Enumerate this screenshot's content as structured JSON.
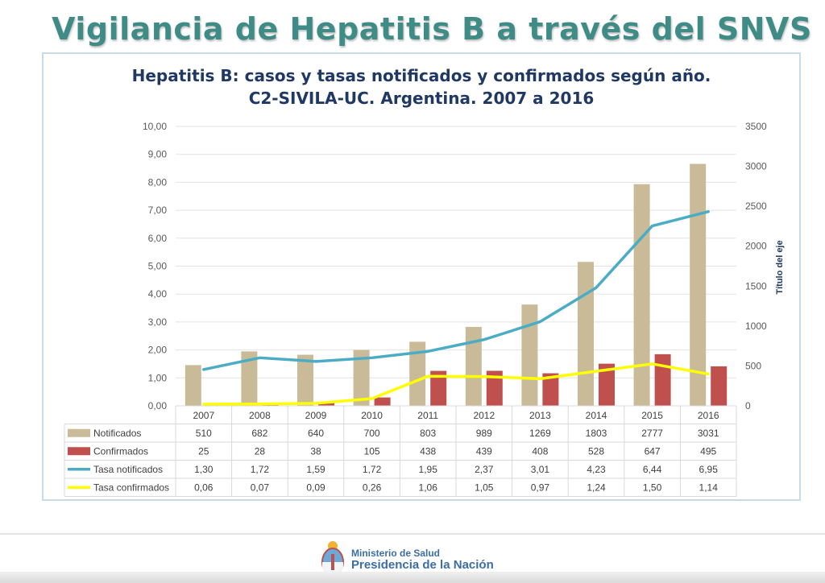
{
  "slide": {
    "title": "Vigilancia de Hepatitis B a través del SNVS"
  },
  "footer": {
    "ministry": "Ministerio de Salud",
    "presidency": "Presidencia de la Nación"
  },
  "chart_data": {
    "type": "bar",
    "title_line1": "Hepatitis B: casos y tasas notificados y confirmados según año.",
    "title_line2": "C2-SIVILA-UC. Argentina. 2007 a 2016",
    "categories": [
      "2007",
      "2008",
      "2009",
      "2010",
      "2011",
      "2012",
      "2013",
      "2014",
      "2015",
      "2016"
    ],
    "y_left": {
      "ylim": [
        0,
        10
      ],
      "ticks": [
        "0,00",
        "1,00",
        "2,00",
        "3,00",
        "4,00",
        "5,00",
        "6,00",
        "7,00",
        "8,00",
        "9,00",
        "10,00"
      ]
    },
    "y_right": {
      "ylim": [
        0,
        3500
      ],
      "ticks": [
        "0",
        "500",
        "1000",
        "1500",
        "2000",
        "2500",
        "3000",
        "3500"
      ],
      "label": "Título del eje"
    },
    "series": [
      {
        "name": "Notificados",
        "type": "bar",
        "axis": "right",
        "color": "#c9bb97",
        "values": [
          510,
          682,
          640,
          700,
          803,
          989,
          1269,
          1803,
          2777,
          3031
        ],
        "labels": [
          "510",
          "682",
          "640",
          "700",
          "803",
          "989",
          "1269",
          "1803",
          "2777",
          "3031"
        ]
      },
      {
        "name": "Confirmados",
        "type": "bar",
        "axis": "right",
        "color": "#c0504d",
        "values": [
          25,
          28,
          38,
          105,
          438,
          439,
          408,
          528,
          647,
          495
        ],
        "labels": [
          "25",
          "28",
          "38",
          "105",
          "438",
          "439",
          "408",
          "528",
          "647",
          "495"
        ]
      },
      {
        "name": "Tasa notificados",
        "type": "line",
        "axis": "left",
        "color": "#4bacc6",
        "values": [
          1.3,
          1.72,
          1.59,
          1.72,
          1.95,
          2.37,
          3.01,
          4.23,
          6.44,
          6.95
        ],
        "labels": [
          "1,30",
          "1,72",
          "1,59",
          "1,72",
          "1,95",
          "2,37",
          "3,01",
          "4,23",
          "6,44",
          "6,95"
        ]
      },
      {
        "name": "Tasa confirmados",
        "type": "line",
        "axis": "left",
        "color": "#ffff00",
        "values": [
          0.06,
          0.07,
          0.09,
          0.26,
          1.06,
          1.05,
          0.97,
          1.24,
          1.5,
          1.14
        ],
        "labels": [
          "0,06",
          "0,07",
          "0,09",
          "0,26",
          "1,06",
          "1,05",
          "0,97",
          "1,24",
          "1,50",
          "1,14"
        ]
      }
    ],
    "grid": true,
    "legend": "data-table-below"
  }
}
